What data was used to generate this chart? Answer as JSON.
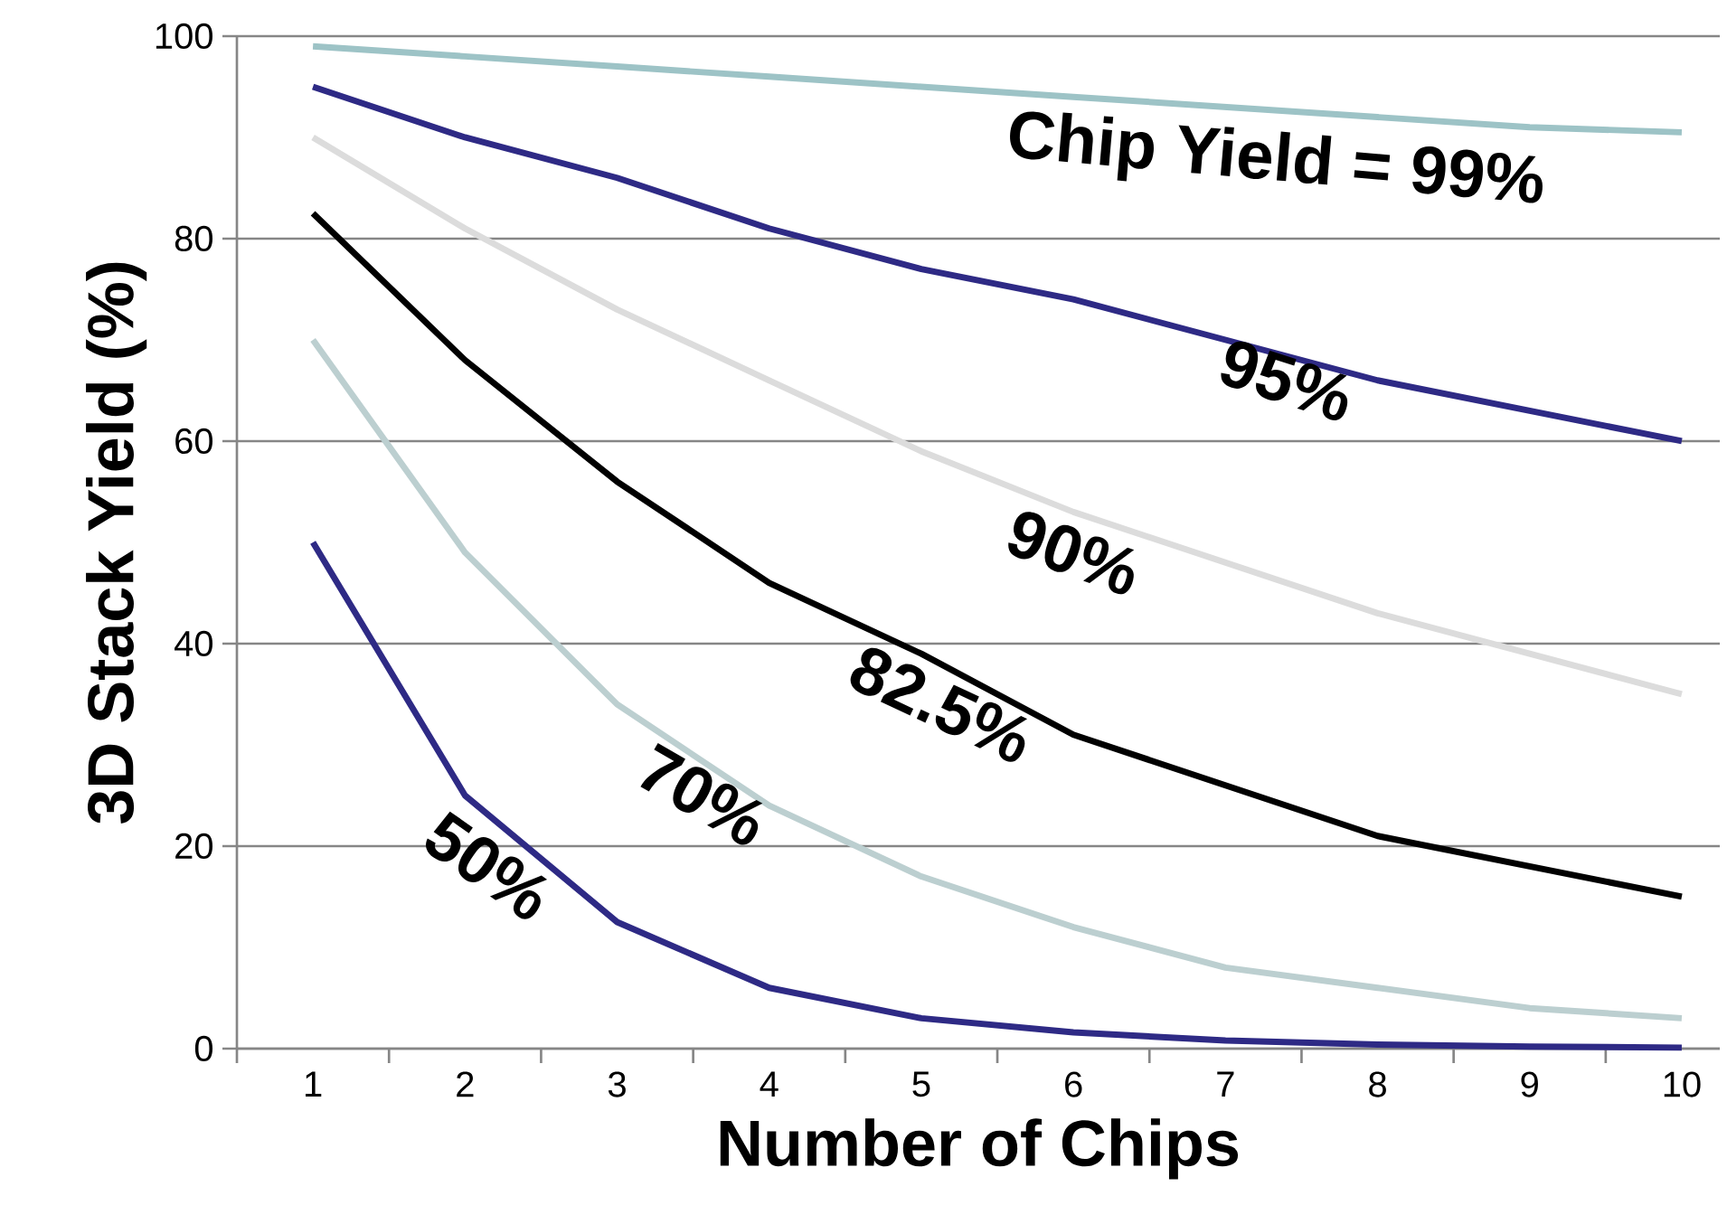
{
  "chart_data": {
    "type": "line",
    "xlabel": "Number of Chips",
    "ylabel": "3D Stack Yield (%)",
    "categories": [
      "1",
      "2",
      "3",
      "4",
      "5",
      "6",
      "7",
      "8",
      "9",
      "10"
    ],
    "ylim": [
      0,
      100
    ],
    "yticks": [
      0,
      20,
      40,
      60,
      80,
      100
    ],
    "grid": "y",
    "legend": false,
    "marker": "none",
    "series": [
      {
        "name": "Chip Yield = 99%",
        "color": "#9dc3c6",
        "values": [
          99,
          98,
          97,
          96,
          95,
          94,
          93,
          92,
          91,
          90.5
        ]
      },
      {
        "name": "95%",
        "color": "#2e2a85",
        "values": [
          95,
          90,
          86,
          81,
          77,
          74,
          70,
          66,
          63,
          60
        ]
      },
      {
        "name": "90%",
        "color": "#dcdcdc",
        "values": [
          90,
          81,
          73,
          66,
          59,
          53,
          48,
          43,
          39,
          35
        ]
      },
      {
        "name": "82.5%",
        "color": "#000000",
        "values": [
          82.5,
          68,
          56,
          46,
          39,
          31,
          26,
          21,
          18,
          15
        ]
      },
      {
        "name": "70%",
        "color": "#bccfd0",
        "values": [
          70,
          49,
          34,
          24,
          17,
          12,
          8,
          6,
          4,
          3
        ]
      },
      {
        "name": "50%",
        "color": "#2e2a85",
        "values": [
          50,
          25,
          12.5,
          6,
          3,
          1.6,
          0.8,
          0.4,
          0.2,
          0.1
        ]
      }
    ]
  }
}
